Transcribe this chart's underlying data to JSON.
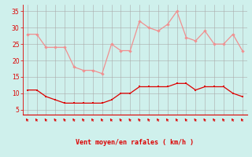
{
  "x": [
    0,
    1,
    2,
    3,
    4,
    5,
    6,
    7,
    8,
    9,
    10,
    11,
    12,
    13,
    14,
    15,
    16,
    17,
    18,
    19,
    20,
    21,
    22,
    23
  ],
  "rafales": [
    28,
    28,
    24,
    24,
    24,
    18,
    17,
    17,
    16,
    25,
    23,
    23,
    32,
    30,
    29,
    31,
    35,
    27,
    26,
    29,
    25,
    25,
    28,
    23
  ],
  "moyen": [
    11,
    11,
    9,
    8,
    7,
    7,
    7,
    7,
    7,
    8,
    10,
    10,
    12,
    12,
    12,
    12,
    13,
    13,
    11,
    12,
    12,
    12,
    10,
    9
  ],
  "bg_color": "#cff0ec",
  "grid_color": "#aaaaaa",
  "line_rafales_color": "#f09090",
  "line_moyen_color": "#dd0000",
  "marker_color_rafales": "#f09090",
  "marker_color_moyen": "#dd0000",
  "ylabel_values": [
    5,
    10,
    15,
    20,
    25,
    30,
    35
  ],
  "xlabel": "Vent moyen/en rafales ( km/h )",
  "arrow_color": "#dd0000",
  "axis_color": "#dd0000",
  "tick_color": "#dd0000",
  "ylim": [
    3.5,
    37
  ],
  "xlim": [
    -0.5,
    23.5
  ]
}
